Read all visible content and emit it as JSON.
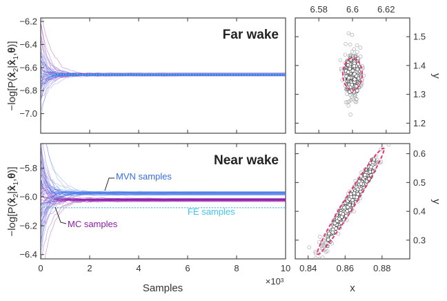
{
  "chart_data": [
    {
      "id": "far-trace",
      "type": "line",
      "title": "Far wake",
      "xlabel": "",
      "ylabel": "-log[P(x̂2|x̂1,θ)]",
      "xlim": [
        0,
        10
      ],
      "ylim": [
        -7.17,
        -6.17
      ],
      "xticks": [
        "0",
        "2",
        "4",
        "6",
        "8",
        "10"
      ],
      "yticks": [
        -6.2,
        -6.4,
        -6.6,
        -6.8,
        -7.0
      ],
      "ytick_labels": [
        "−6.2",
        "−6.4",
        "−6.6",
        "−6.8",
        "−7.0"
      ],
      "series": [
        {
          "name": "MC samples",
          "color": "#8e1aa8",
          "converged": -6.662,
          "start_spread": 0.2,
          "count": 22
        },
        {
          "name": "MVN samples",
          "color": "#4b7be8",
          "converged": -6.662,
          "start_spread": 0.18,
          "count": 28
        }
      ],
      "fe_value": -6.662,
      "fe_color": "#3ec6ef"
    },
    {
      "id": "far-scatter",
      "type": "scatter",
      "xlabel": "",
      "ylabel": "y",
      "xlim": [
        6.566,
        6.634
      ],
      "ylim": [
        1.165,
        1.565
      ],
      "xticks": [
        6.58,
        6.6,
        6.62
      ],
      "xtick_labels": [
        "6.58",
        "6.6",
        "6.62"
      ],
      "yticks": [
        1.2,
        1.3,
        1.4,
        1.5
      ],
      "ytick_labels": [
        "1.2",
        "1.3",
        "1.4",
        "1.5"
      ],
      "center": [
        6.6,
        1.37
      ],
      "sd_minor": 0.0025,
      "sd_major": 0.048,
      "slope": 0,
      "ellipse_color": "#e8337a",
      "n_points": 340
    },
    {
      "id": "near-trace",
      "type": "line",
      "title": "Near wake",
      "xlabel": "Samples",
      "x_multiplier": "×10³",
      "ylabel": "-log[P(x̂2|x̂1,θ)]",
      "xlim": [
        0,
        10
      ],
      "ylim": [
        -6.43,
        -5.63
      ],
      "xticks": [
        "0",
        "2",
        "4",
        "6",
        "8",
        "10"
      ],
      "yticks": [
        -5.8,
        -6.0,
        -6.2,
        -6.4
      ],
      "ytick_labels": [
        "−5.8",
        "−6.0",
        "−6.2",
        "−6.4"
      ],
      "series": [
        {
          "name": "MC samples",
          "color": "#8e1aa8",
          "converged": -6.02,
          "start_spread": 0.25,
          "count": 30
        },
        {
          "name": "MVN samples",
          "color": "#4b7be8",
          "converged": -5.975,
          "start_spread": 0.22,
          "count": 34
        }
      ],
      "fe_value": -6.075,
      "fe_color": "#3ec6ef",
      "annotations": [
        {
          "text": "MVN samples",
          "color": "#3a6cdf"
        },
        {
          "text": "MC samples",
          "color": "#8e1aa8"
        },
        {
          "text": "FE samples",
          "color": "#3ec6ef"
        }
      ]
    },
    {
      "id": "near-scatter",
      "type": "scatter",
      "xlabel": "x",
      "ylabel": "y",
      "xlim": [
        0.833,
        0.895
      ],
      "ylim": [
        0.235,
        0.635
      ],
      "xticks": [
        0.84,
        0.86,
        0.88
      ],
      "xtick_labels": [
        "0.84",
        "0.86",
        "0.88"
      ],
      "yticks": [
        0.3,
        0.4,
        0.5,
        0.6
      ],
      "ytick_labels": [
        "0.3",
        "0.4",
        "0.5",
        "0.6"
      ],
      "center": [
        0.863,
        0.435
      ],
      "sd_minor": 0.0016,
      "sd_major": 0.0095,
      "slope": 10.0,
      "ellipse_color": "#e8337a",
      "n_points": 340
    }
  ]
}
